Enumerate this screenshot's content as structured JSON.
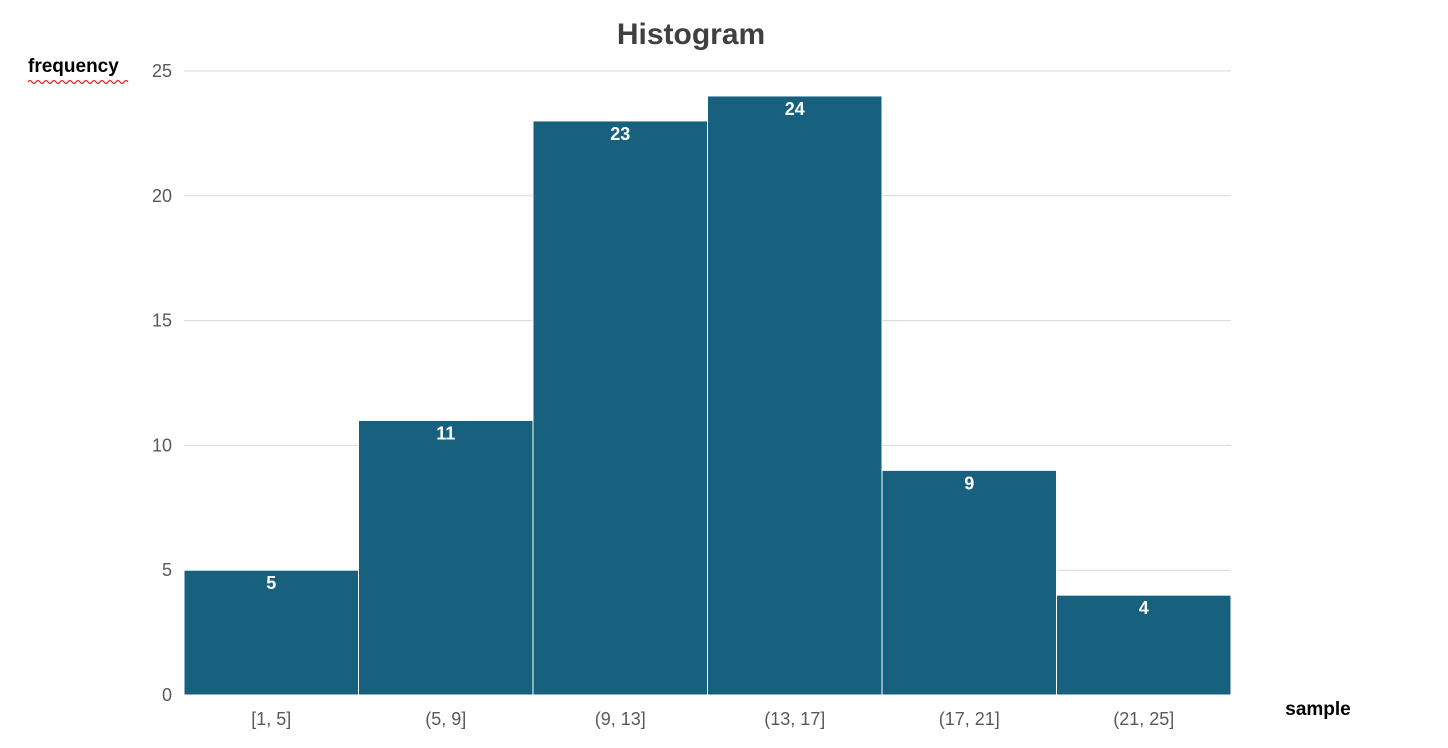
{
  "chart_data": {
    "type": "bar",
    "title": "Histogram",
    "ylabel": "frequency",
    "xlabel": "sample",
    "categories": [
      "[1, 5]",
      "(5, 9]",
      "(9, 13]",
      "(13, 17]",
      "(17, 21]",
      "(21, 25]"
    ],
    "values": [
      5,
      11,
      23,
      24,
      9,
      4
    ],
    "ylim": [
      0,
      25
    ],
    "yticks": [
      0,
      5,
      10,
      15,
      20,
      25
    ],
    "grid": true,
    "legend": "none",
    "data_labels": true,
    "bar_color": "#17617f",
    "gridline_color": "#d9d9d9"
  }
}
